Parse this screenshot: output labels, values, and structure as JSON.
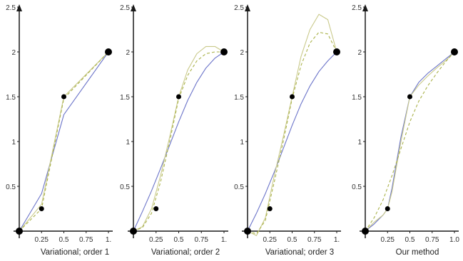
{
  "colors": {
    "axis": "#1a1a1a",
    "method_curve": "#6b74c9",
    "variant_curve_solid": "#c9c98a",
    "variant_curve_dashed": "#aab24a",
    "data_point": "#000000"
  },
  "chart_data": [
    {
      "type": "line",
      "caption": "Variational; order 1",
      "x_ticks": [
        "0.25",
        "0.5",
        "0.75",
        "1."
      ],
      "y_ticks": [
        "0.5",
        "1",
        "1.5",
        "2",
        "2.5"
      ],
      "xlim": [
        0,
        1
      ],
      "ylim": [
        0,
        2.5
      ],
      "grid": false,
      "points": [
        [
          0,
          0
        ],
        [
          0.25,
          0.25
        ],
        [
          0.5,
          1.5
        ],
        [
          1,
          2
        ]
      ],
      "series": [
        {
          "style": "solid",
          "color": "method",
          "x": [
            0,
            0.25,
            0.5,
            1
          ],
          "y": [
            0,
            0.42,
            1.3,
            2
          ]
        },
        {
          "style": "solid",
          "color": "variant_solid",
          "x": [
            0,
            0.25,
            0.5,
            1
          ],
          "y": [
            0,
            0.3,
            1.5,
            2
          ]
        },
        {
          "style": "dashed",
          "color": "variant_dashed",
          "x": [
            0,
            0.25,
            0.5,
            1
          ],
          "y": [
            0,
            0.25,
            1.48,
            2
          ]
        }
      ]
    },
    {
      "type": "line",
      "caption": "Variational; order 2",
      "x_ticks": [
        "0.25",
        "0.5",
        "0.75",
        "1."
      ],
      "y_ticks": [
        "0.5",
        "1",
        "1.5",
        "2",
        "2.5"
      ],
      "xlim": [
        0,
        1
      ],
      "ylim": [
        0,
        2.5
      ],
      "grid": false,
      "points": [
        [
          0,
          0
        ],
        [
          0.25,
          0.25
        ],
        [
          0.5,
          1.5
        ],
        [
          1,
          2
        ]
      ],
      "series": [
        {
          "style": "solid",
          "color": "method",
          "x": [
            0,
            0.1,
            0.2,
            0.3,
            0.4,
            0.5,
            0.6,
            0.7,
            0.8,
            0.9,
            1
          ],
          "y": [
            0,
            0.22,
            0.45,
            0.7,
            0.96,
            1.22,
            1.46,
            1.66,
            1.82,
            1.93,
            2
          ]
        },
        {
          "style": "solid",
          "color": "variant_solid",
          "x": [
            0,
            0.1,
            0.2,
            0.3,
            0.4,
            0.5,
            0.6,
            0.7,
            0.8,
            0.9,
            1
          ],
          "y": [
            0,
            0.05,
            0.25,
            0.62,
            1.05,
            1.5,
            1.8,
            1.98,
            2.06,
            2.06,
            2
          ]
        },
        {
          "style": "dashed",
          "color": "variant_dashed",
          "x": [
            0,
            0.1,
            0.2,
            0.3,
            0.4,
            0.5,
            0.6,
            0.7,
            0.8,
            0.9,
            1
          ],
          "y": [
            0,
            0.04,
            0.2,
            0.55,
            1.0,
            1.48,
            1.74,
            1.9,
            1.98,
            2.0,
            2
          ]
        }
      ]
    },
    {
      "type": "line",
      "caption": "Variational; order 3",
      "x_ticks": [
        "0.25",
        "0.5",
        "0.75",
        "1."
      ],
      "y_ticks": [
        "0.5",
        "1",
        "1.5",
        "2",
        "2.5"
      ],
      "xlim": [
        0,
        1
      ],
      "ylim": [
        0,
        2.5
      ],
      "grid": false,
      "points": [
        [
          0,
          0
        ],
        [
          0.25,
          0.25
        ],
        [
          0.5,
          1.5
        ],
        [
          1,
          2
        ]
      ],
      "series": [
        {
          "style": "solid",
          "color": "method",
          "x": [
            0,
            0.1,
            0.2,
            0.3,
            0.4,
            0.5,
            0.6,
            0.7,
            0.8,
            0.9,
            1
          ],
          "y": [
            0,
            0.2,
            0.42,
            0.66,
            0.92,
            1.18,
            1.42,
            1.62,
            1.78,
            1.9,
            2
          ]
        },
        {
          "style": "solid",
          "color": "variant_solid",
          "x": [
            0,
            0.1,
            0.2,
            0.3,
            0.4,
            0.5,
            0.6,
            0.7,
            0.8,
            0.9,
            1
          ],
          "y": [
            0,
            -0.05,
            0.15,
            0.62,
            1.05,
            1.5,
            1.95,
            2.25,
            2.42,
            2.36,
            2
          ]
        },
        {
          "style": "dashed",
          "color": "variant_dashed",
          "x": [
            0,
            0.1,
            0.2,
            0.3,
            0.4,
            0.5,
            0.6,
            0.7,
            0.8,
            0.9,
            1
          ],
          "y": [
            0,
            -0.03,
            0.12,
            0.55,
            1.0,
            1.48,
            1.85,
            2.1,
            2.22,
            2.2,
            2
          ]
        }
      ]
    },
    {
      "type": "line",
      "caption": "Our method",
      "x_ticks": [
        "0.25",
        "0.5",
        "0.75",
        "1.0"
      ],
      "y_ticks": [
        "0.5",
        "1",
        "1.5",
        "2",
        "2.5"
      ],
      "xlim": [
        0,
        1
      ],
      "ylim": [
        0,
        2.5
      ],
      "grid": false,
      "points": [
        [
          0,
          0
        ],
        [
          0.25,
          0.25
        ],
        [
          0.5,
          1.5
        ],
        [
          1,
          2
        ]
      ],
      "series": [
        {
          "style": "solid",
          "color": "method",
          "x": [
            0,
            0.1,
            0.2,
            0.25,
            0.3,
            0.4,
            0.5,
            0.6,
            0.7,
            0.8,
            0.9,
            1
          ],
          "y": [
            0,
            0.08,
            0.18,
            0.25,
            0.48,
            1.05,
            1.5,
            1.66,
            1.76,
            1.84,
            1.92,
            2
          ]
        },
        {
          "style": "solid",
          "color": "variant_solid",
          "x": [
            0,
            0.1,
            0.2,
            0.25,
            0.3,
            0.4,
            0.5,
            0.6,
            0.7,
            0.8,
            0.9,
            1
          ],
          "y": [
            0,
            0.1,
            0.18,
            0.25,
            0.44,
            1.0,
            1.5,
            1.63,
            1.73,
            1.82,
            1.9,
            2
          ]
        },
        {
          "style": "dashed",
          "color": "variant_dashed",
          "x": [
            0,
            0.1,
            0.2,
            0.3,
            0.4,
            0.5,
            0.6,
            0.7,
            0.8,
            0.9,
            1
          ],
          "y": [
            0,
            0.15,
            0.35,
            0.62,
            0.92,
            1.22,
            1.45,
            1.62,
            1.76,
            1.89,
            2
          ]
        }
      ]
    }
  ]
}
